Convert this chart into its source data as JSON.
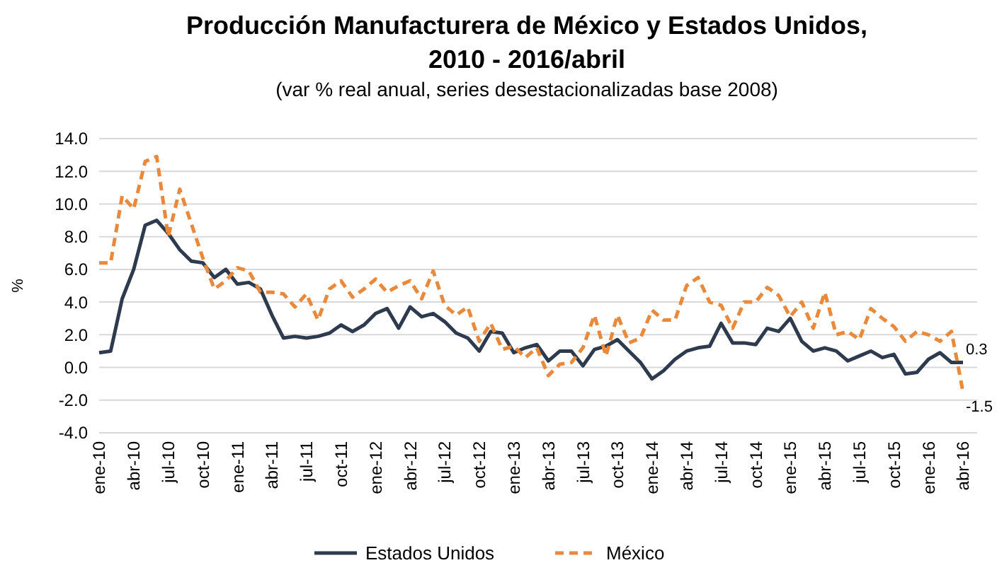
{
  "chart_data": {
    "type": "line",
    "title": "Producción Manufacturera de México y Estados Unidos,\n2010 - 2016/abril",
    "subtitle": "(var % real anual, series desestacionalizadas base 2008)",
    "ylabel": "%",
    "categories": [
      "ene-10",
      null,
      null,
      "abr-10",
      null,
      null,
      "jul-10",
      null,
      null,
      "oct-10",
      null,
      null,
      "ene-11",
      null,
      null,
      "abr-11",
      null,
      null,
      "jul-11",
      null,
      null,
      "oct-11",
      null,
      null,
      "ene-12",
      null,
      null,
      "abr-12",
      null,
      null,
      "jul-12",
      null,
      null,
      "oct-12",
      null,
      null,
      "ene-13",
      null,
      null,
      "abr-13",
      null,
      null,
      "jul-13",
      null,
      null,
      "oct-13",
      null,
      null,
      "ene-14",
      null,
      null,
      "abr-14",
      null,
      null,
      "jul-14",
      null,
      null,
      "oct-14",
      null,
      null,
      "ene-15",
      null,
      null,
      "abr-15",
      null,
      null,
      "jul-15",
      null,
      null,
      "oct-15",
      null,
      null,
      "ene-16",
      null,
      null,
      "abr-16"
    ],
    "ylim": [
      -4,
      14
    ],
    "yticks": [
      {
        "value": -4,
        "label": "-4.0"
      },
      {
        "value": -2,
        "label": "-2.0"
      },
      {
        "value": 0,
        "label": "0.0"
      },
      {
        "value": 2,
        "label": "2.0"
      },
      {
        "value": 4,
        "label": "4.0"
      },
      {
        "value": 6,
        "label": "6.0"
      },
      {
        "value": 8,
        "label": "8.0"
      },
      {
        "value": 10,
        "label": "10.0"
      },
      {
        "value": 12,
        "label": "12.0"
      },
      {
        "value": 14,
        "label": "14.0"
      }
    ],
    "grid": "y",
    "legend": "bottom",
    "series": [
      {
        "name": "Estados Unidos",
        "color": "#2e3a4e",
        "line_style": "solid",
        "values": [
          0.9,
          1.0,
          4.2,
          6.0,
          8.7,
          9.0,
          8.2,
          7.2,
          6.5,
          6.4,
          5.5,
          6.0,
          5.1,
          5.2,
          4.8,
          3.2,
          1.8,
          1.9,
          1.8,
          1.9,
          2.1,
          2.6,
          2.2,
          2.6,
          3.3,
          3.6,
          2.4,
          3.7,
          3.1,
          3.3,
          2.8,
          2.1,
          1.8,
          1.0,
          2.2,
          2.1,
          0.9,
          1.2,
          1.4,
          0.4,
          1.0,
          1.0,
          0.1,
          1.1,
          1.3,
          1.7,
          1.0,
          0.3,
          -0.7,
          -0.2,
          0.5,
          1.0,
          1.2,
          1.3,
          2.7,
          1.5,
          1.5,
          1.4,
          2.4,
          2.2,
          3.0,
          1.6,
          1.0,
          1.2,
          1.0,
          0.4,
          0.7,
          1.0,
          0.6,
          0.8,
          -0.4,
          -0.3,
          0.5,
          0.9,
          0.3,
          0.3
        ],
        "value_labels": [
          null,
          null,
          null,
          null,
          null,
          null,
          null,
          null,
          null,
          null,
          null,
          null,
          null,
          null,
          null,
          null,
          null,
          null,
          null,
          null,
          null,
          null,
          null,
          null,
          null,
          null,
          null,
          null,
          null,
          null,
          null,
          null,
          null,
          null,
          null,
          null,
          null,
          null,
          null,
          null,
          null,
          null,
          null,
          null,
          null,
          null,
          null,
          null,
          null,
          null,
          null,
          null,
          null,
          null,
          null,
          null,
          null,
          null,
          null,
          null,
          null,
          null,
          null,
          null,
          null,
          null,
          null,
          null,
          null,
          null,
          null,
          null,
          null,
          null,
          null,
          "0.3"
        ]
      },
      {
        "name": "México",
        "color": "#e8893b",
        "line_style": "dashed",
        "values": [
          6.4,
          6.4,
          10.5,
          9.7,
          12.6,
          12.9,
          8.0,
          10.9,
          8.8,
          6.7,
          4.8,
          5.3,
          6.1,
          5.9,
          4.6,
          4.6,
          4.5,
          3.7,
          4.5,
          2.9,
          4.8,
          5.3,
          4.3,
          4.8,
          5.4,
          4.6,
          5.0,
          5.3,
          4.2,
          5.9,
          3.8,
          3.2,
          3.7,
          1.6,
          2.7,
          1.1,
          1.3,
          0.6,
          1.2,
          -0.5,
          0.2,
          0.3,
          1.2,
          3.2,
          0.7,
          3.2,
          1.5,
          1.8,
          3.5,
          2.9,
          2.9,
          5.0,
          5.5,
          4.0,
          3.8,
          2.4,
          4.0,
          4.0,
          4.9,
          4.4,
          3.1,
          4.0,
          2.4,
          4.6,
          2.0,
          2.2,
          1.7,
          3.6,
          3.0,
          2.5,
          1.6,
          2.2,
          2.0,
          1.6,
          2.2,
          -1.5
        ],
        "value_labels": [
          null,
          null,
          null,
          null,
          null,
          null,
          null,
          null,
          null,
          null,
          null,
          null,
          null,
          null,
          null,
          null,
          null,
          null,
          null,
          null,
          null,
          null,
          null,
          null,
          null,
          null,
          null,
          null,
          null,
          null,
          null,
          null,
          null,
          null,
          null,
          null,
          null,
          null,
          null,
          null,
          null,
          null,
          null,
          null,
          null,
          null,
          null,
          null,
          null,
          null,
          null,
          null,
          null,
          null,
          null,
          null,
          null,
          null,
          null,
          null,
          null,
          null,
          null,
          null,
          null,
          null,
          null,
          null,
          null,
          null,
          null,
          null,
          null,
          null,
          null,
          "-1.5"
        ]
      }
    ]
  }
}
